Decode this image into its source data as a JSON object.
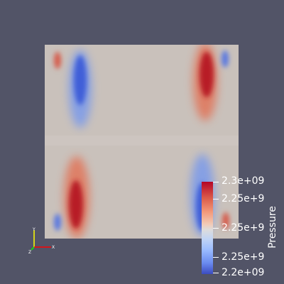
{
  "viewport": {
    "background_color": "#525467",
    "field_base_color": "#c9c1bb"
  },
  "colorbar": {
    "title": "Pressure",
    "colormap": "cool-to-warm",
    "range": [
      2200000000.0,
      2300000000.0
    ],
    "tick_labels": [
      "2.3e+09",
      "2.25e+9",
      "2.25e+9",
      "2.25e+9",
      "2.2e+09"
    ],
    "colors": {
      "high": "#b40426",
      "mid": "#dddcdc",
      "low": "#3b4cc0"
    }
  },
  "orientation_axes": {
    "icon": "axes-triad-icon",
    "x_color": "#ff0000",
    "y_color": "#ffff00",
    "z_color": "#00ff00",
    "x_label": "X",
    "y_label": "Y",
    "z_label": "Z"
  }
}
